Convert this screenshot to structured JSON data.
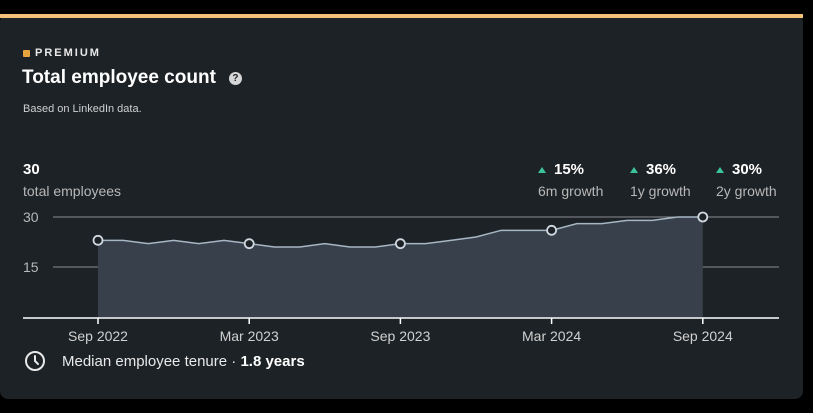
{
  "card": {
    "premium_label": "PREMIUM",
    "title": "Total employee count",
    "help_glyph": "?",
    "subtitle": "Based on LinkedIn data."
  },
  "summary": {
    "count": "30",
    "count_label": "total employees"
  },
  "growth": [
    {
      "value": "15%",
      "label": "6m growth"
    },
    {
      "value": "36%",
      "label": "1y growth"
    },
    {
      "value": "30%",
      "label": "2y growth"
    }
  ],
  "footer": {
    "tenure_prefix": "Median employee tenure · ",
    "tenure_value": "1.8 years"
  },
  "colors": {
    "accent_bar": "#f3c07b",
    "premium_icon": "#e7a33e",
    "growth_up": "#3dc49a",
    "area_fill": "#38414b",
    "line": "#a7b6c5"
  },
  "icons": [
    "premium-icon",
    "help-icon",
    "growth-up-arrow-icon",
    "clock-icon"
  ],
  "chart_data": {
    "type": "area",
    "title": "",
    "xlabel": "",
    "ylabel": "",
    "ylim": [
      0,
      30
    ],
    "y_ticks": [
      15,
      30
    ],
    "x_tick_labels": [
      "Sep 2022",
      "Mar 2023",
      "Sep 2023",
      "Mar 2024",
      "Sep 2024"
    ],
    "x": [
      "Sep 2022",
      "Oct 2022",
      "Nov 2022",
      "Dec 2022",
      "Jan 2023",
      "Feb 2023",
      "Mar 2023",
      "Apr 2023",
      "May 2023",
      "Jun 2023",
      "Jul 2023",
      "Aug 2023",
      "Sep 2023",
      "Oct 2023",
      "Nov 2023",
      "Dec 2023",
      "Jan 2024",
      "Feb 2024",
      "Mar 2024",
      "Apr 2024",
      "May 2024",
      "Jun 2024",
      "Jul 2024",
      "Aug 2024",
      "Sep 2024"
    ],
    "values": [
      23,
      23,
      22,
      23,
      22,
      23,
      22,
      21,
      21,
      22,
      21,
      21,
      22,
      22,
      23,
      24,
      26,
      26,
      26,
      28,
      28,
      29,
      29,
      30,
      30
    ],
    "marked_points": [
      "Sep 2022",
      "Mar 2023",
      "Sep 2023",
      "Mar 2024",
      "Sep 2024"
    ],
    "grid": true,
    "legend": "none"
  }
}
